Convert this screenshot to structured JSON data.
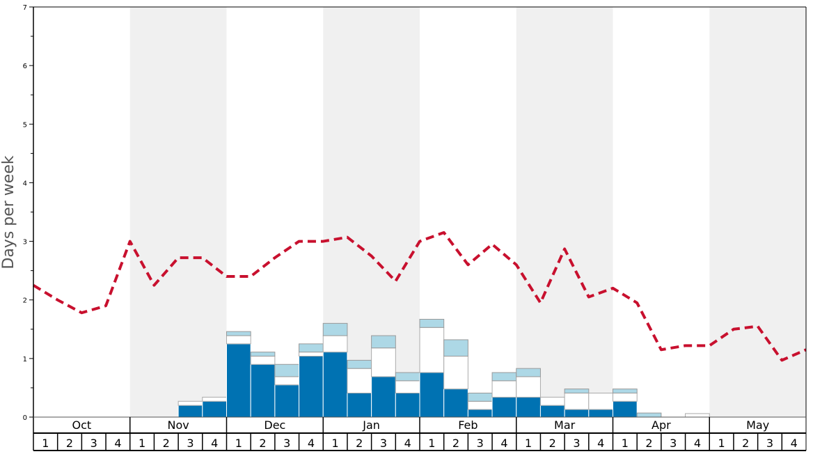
{
  "chart_data": {
    "type": "bar",
    "ylabel": "Days per week",
    "ylim": [
      0,
      7
    ],
    "yticks": [
      "0",
      "1",
      "2",
      "3",
      "4",
      "5",
      "6",
      "7"
    ],
    "months": [
      "Oct",
      "Nov",
      "Dec",
      "Jan",
      "Feb",
      "Mar",
      "Apr",
      "May"
    ],
    "weeks": [
      "1",
      "2",
      "3",
      "4"
    ],
    "stacked": true,
    "colors": {
      "dark": "#0072b2",
      "mid": "#ffffff",
      "light": "#add8e6",
      "line": "#c8102e",
      "band": "#f0f0f0"
    },
    "series": [
      {
        "values": [
          0,
          0,
          0,
          0,
          0,
          0,
          0.2,
          0.27,
          1.25,
          0.9,
          0.55,
          1.04,
          1.11,
          0.41,
          0.69,
          0.41,
          0.76,
          0.48,
          0.13,
          0.34,
          0.34,
          0.2,
          0.13,
          0.13,
          0.27,
          0,
          0,
          0,
          0,
          0,
          0,
          0
        ]
      },
      {
        "values": [
          0,
          0,
          0,
          0,
          0,
          0,
          0.07,
          0.07,
          0.14,
          0.14,
          0.14,
          0.07,
          0.28,
          0.42,
          0.49,
          0.21,
          0.77,
          0.56,
          0.14,
          0.28,
          0.35,
          0.14,
          0.28,
          0.28,
          0.14,
          0,
          0,
          0.06,
          0,
          0,
          0,
          0
        ]
      },
      {
        "values": [
          0,
          0,
          0,
          0,
          0,
          0,
          0,
          0,
          0.07,
          0.07,
          0.21,
          0.14,
          0.21,
          0.14,
          0.21,
          0.14,
          0.14,
          0.28,
          0.14,
          0.14,
          0.14,
          0,
          0.07,
          0,
          0.07,
          0.07,
          0,
          0,
          0,
          0,
          0,
          0
        ]
      },
      {
        "type": "line",
        "style": "dashed",
        "values": [
          2.25,
          2.0,
          1.78,
          1.9,
          3.0,
          2.25,
          2.72,
          2.72,
          2.4,
          2.4,
          2.72,
          3.0,
          3.0,
          3.07,
          2.75,
          2.32,
          3.0,
          3.15,
          2.6,
          2.95,
          2.6,
          1.95,
          2.87,
          2.05,
          2.2,
          1.95,
          1.15,
          1.22,
          1.22,
          1.5,
          1.55,
          0.97,
          1.15
        ]
      }
    ],
    "grid": false,
    "legend": "none"
  }
}
